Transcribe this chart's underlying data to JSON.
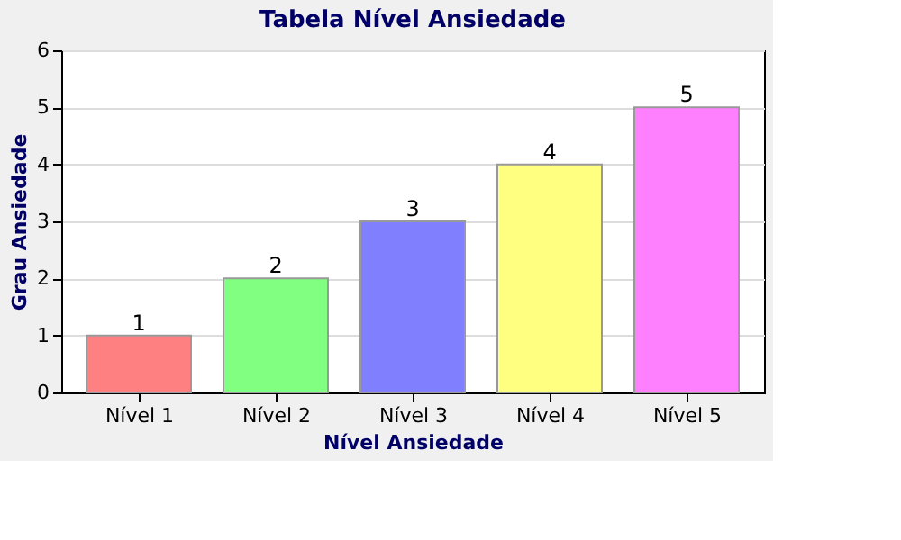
{
  "chart_data": {
    "type": "bar",
    "title": "Tabela Nível Ansiedade",
    "xlabel": "Nível Ansiedade",
    "ylabel": "Grau Ansiedade",
    "categories": [
      "Nível 1",
      "Nível 2",
      "Nível 3",
      "Nível 4",
      "Nível 5"
    ],
    "values": [
      1,
      2,
      3,
      4,
      5
    ],
    "colors": [
      "#ff8080",
      "#80ff80",
      "#8080ff",
      "#ffff80",
      "#ff80ff"
    ],
    "ylim": [
      0,
      6
    ],
    "yticks": [
      0,
      1,
      2,
      3,
      4,
      5,
      6
    ],
    "grid": "y",
    "data_labels": true
  }
}
